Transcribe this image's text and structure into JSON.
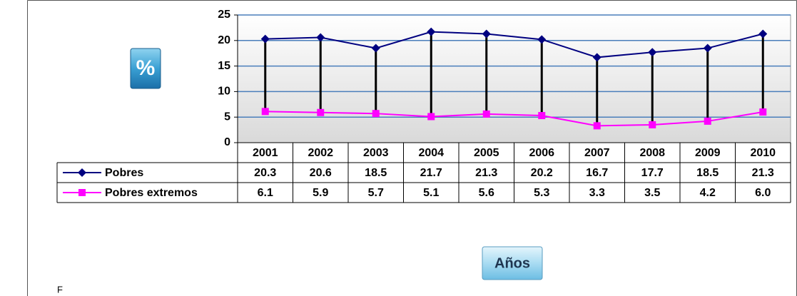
{
  "chart_data": {
    "type": "line",
    "y_axis_label": "%",
    "x_axis_label": "Años",
    "footnote": "F",
    "categories": [
      "2001",
      "2002",
      "2003",
      "2004",
      "2005",
      "2006",
      "2007",
      "2008",
      "2009",
      "2010"
    ],
    "series": [
      {
        "name": "Pobres",
        "color": "#000080",
        "marker": "diamond",
        "values": [
          20.3,
          20.6,
          18.5,
          21.7,
          21.3,
          20.2,
          16.7,
          17.7,
          18.5,
          21.3
        ],
        "value_labels": [
          "20.3",
          "20.6",
          "18.5",
          "21.7",
          "21.3",
          "20.2",
          "16.7",
          "17.7",
          "18.5",
          "21.3"
        ]
      },
      {
        "name": "Pobres extremos",
        "color": "#ff00ff",
        "marker": "square",
        "values": [
          6.1,
          5.9,
          5.7,
          5.1,
          5.6,
          5.3,
          3.3,
          3.5,
          4.2,
          6.0
        ],
        "value_labels": [
          "6.1",
          "5.9",
          "5.7",
          "5.1",
          "5.6",
          "5.3",
          "3.3",
          "3.5",
          "4.2",
          "6.0"
        ]
      }
    ],
    "ylim": [
      0,
      25
    ],
    "yticks": [
      0,
      5,
      10,
      15,
      20,
      25
    ],
    "grid": true,
    "high_low_lines": true,
    "data_table": true
  }
}
